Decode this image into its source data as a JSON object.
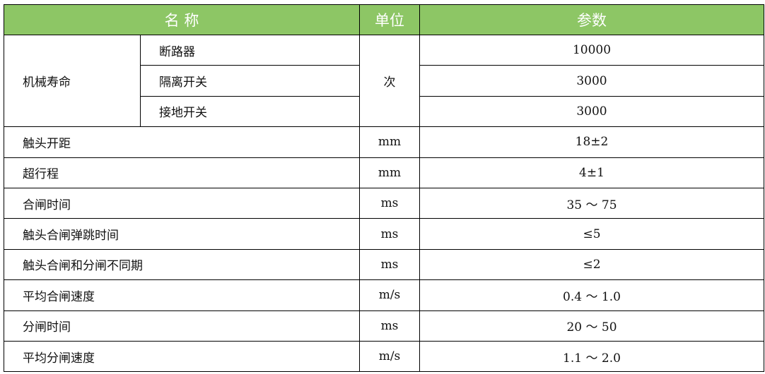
{
  "header": {
    "name": "名 称",
    "unit": "单位",
    "param": "参数"
  },
  "group": {
    "label": "机械寿命",
    "unit": "次",
    "items": [
      {
        "name": "断路器",
        "value": "10000"
      },
      {
        "name": "隔离开关",
        "value": "3000"
      },
      {
        "name": "接地开关",
        "value": "3000"
      }
    ]
  },
  "rows": [
    {
      "name": "触头开距",
      "unit": "mm",
      "value": "18±2"
    },
    {
      "name": "超行程",
      "unit": "mm",
      "value": "4±1"
    },
    {
      "name": "合闸时间",
      "unit": "ms",
      "value": "35 ～ 75"
    },
    {
      "name": "触头合闸弹跳时间",
      "unit": "ms",
      "value": "≤5"
    },
    {
      "name": "触头合闸和分闸不同期",
      "unit": "ms",
      "value": "≤2"
    },
    {
      "name": "平均合闸速度",
      "unit": "m/s",
      "value": "0.4 ～ 1.0"
    },
    {
      "name": "分闸时间",
      "unit": "ms",
      "value": "20 ～ 50"
    },
    {
      "name": "平均分闸速度",
      "unit": "m/s",
      "value": "1.1 ～ 2.0"
    }
  ]
}
